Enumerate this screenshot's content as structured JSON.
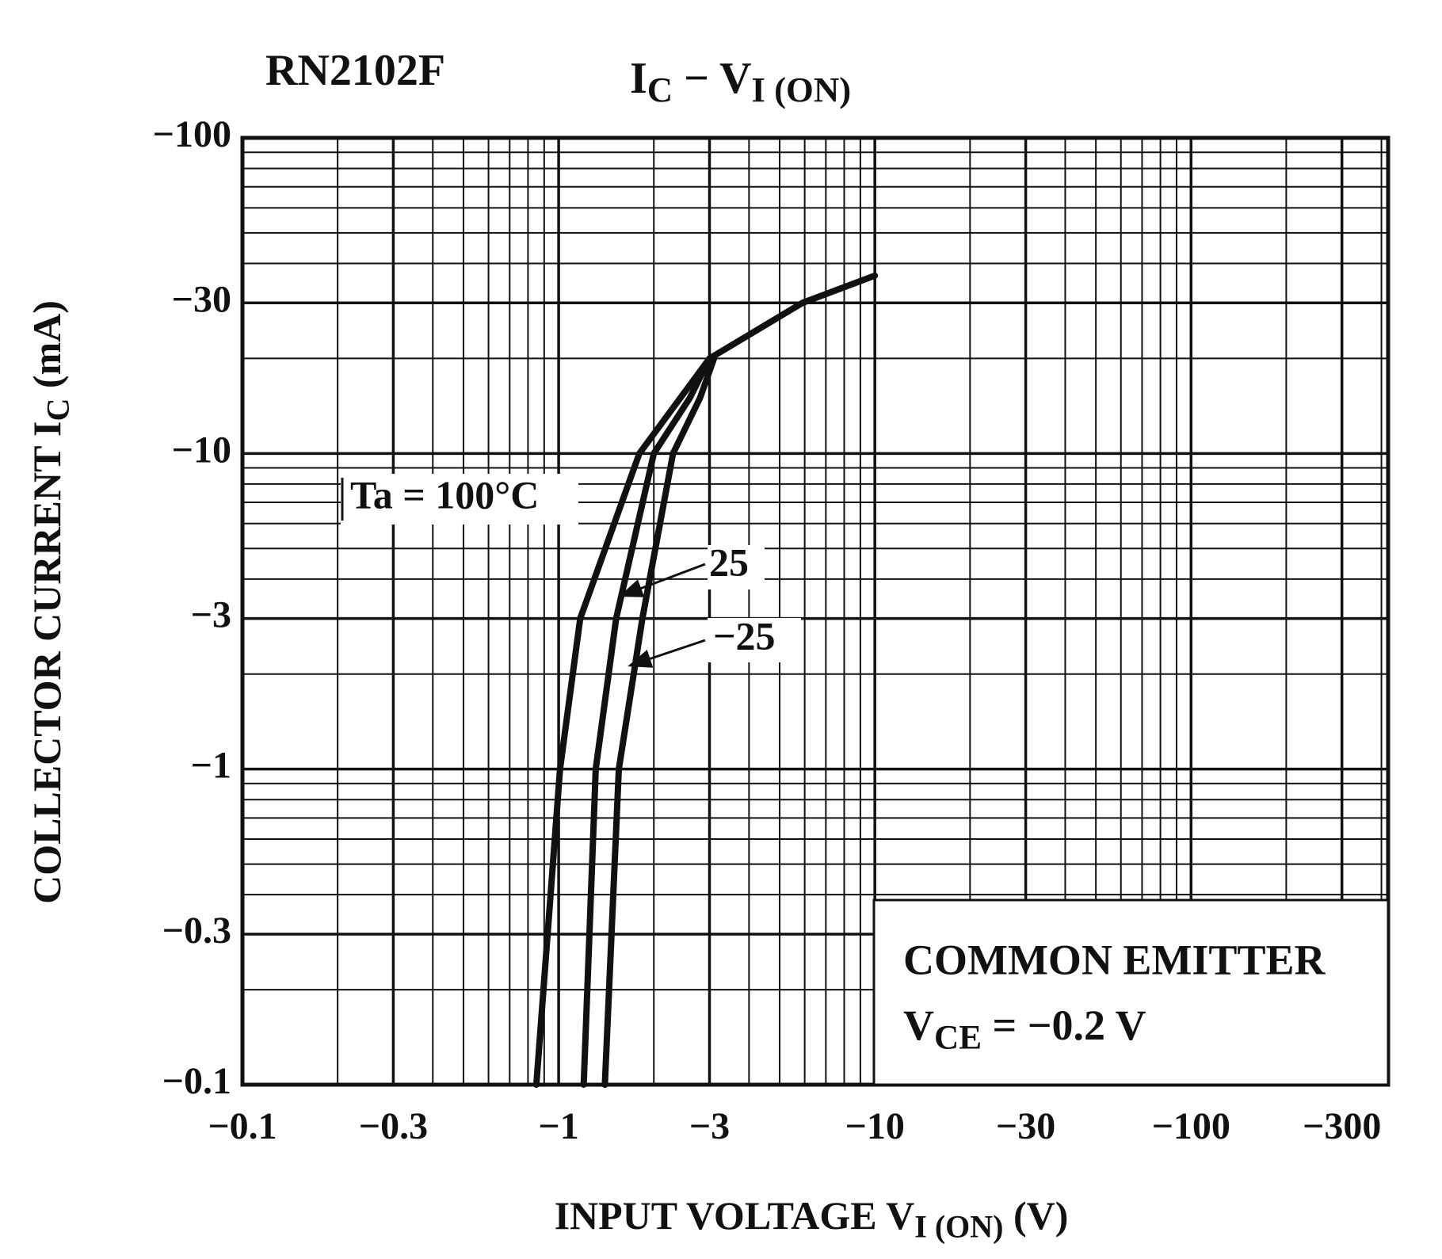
{
  "chart_data": {
    "type": "line",
    "title": "RN2102F",
    "subtitle": [
      "I",
      "C",
      " − V",
      "I (ON)"
    ],
    "x_label": [
      "INPUT VOLTAGE   V",
      "I (ON)",
      "   (V)"
    ],
    "y_label": [
      "COLLECTOR CURRENT   I",
      "C",
      "   (mA)"
    ],
    "log_x": true,
    "log_y": true,
    "grid": true,
    "color": "#111111",
    "xlim": [
      -0.1,
      -420
    ],
    "ylim": [
      -0.1,
      -100
    ],
    "xticks": [
      {
        "value": -0.1,
        "label": "−0.1"
      },
      {
        "value": -0.3,
        "label": "−0.3"
      },
      {
        "value": -1,
        "label": "−1"
      },
      {
        "value": -3,
        "label": "−3"
      },
      {
        "value": -10,
        "label": "−10"
      },
      {
        "value": -30,
        "label": "−30"
      },
      {
        "value": -100,
        "label": "−100"
      },
      {
        "value": -300,
        "label": "−300"
      }
    ],
    "yticks": [
      {
        "value": -0.1,
        "label": "−0.1"
      },
      {
        "value": -0.3,
        "label": "−0.3"
      },
      {
        "value": -1,
        "label": "−1"
      },
      {
        "value": -3,
        "label": "−3"
      },
      {
        "value": -10,
        "label": "−10"
      },
      {
        "value": -30,
        "label": "−30"
      },
      {
        "value": -100,
        "label": "−100"
      }
    ],
    "series": [
      {
        "name": "Ta = 100°C",
        "color": "#111111",
        "x": [
          -0.85,
          -1.01,
          -1.17,
          -1.8,
          -3.0,
          -5.9,
          -10
        ],
        "values": [
          -0.1,
          -1,
          -3,
          -10,
          -20,
          -30,
          -36.6
        ]
      },
      {
        "name": "25",
        "color": "#111111",
        "x": [
          -1.2,
          -1.31,
          -1.52,
          -2.0,
          -2.6,
          -3.0
        ],
        "values": [
          -0.1,
          -1,
          -3,
          -10,
          -15,
          -20
        ]
      },
      {
        "name": "−25",
        "color": "#111111",
        "x": [
          -1.4,
          -1.55,
          -1.84,
          -2.3,
          -2.8,
          -3.1
        ],
        "values": [
          -0.1,
          -1,
          -3,
          -10,
          -15,
          -20
        ]
      }
    ],
    "note": [
      "COMMON  EMITTER",
      [
        "V",
        "CE",
        " = −0.2 V"
      ]
    ]
  }
}
